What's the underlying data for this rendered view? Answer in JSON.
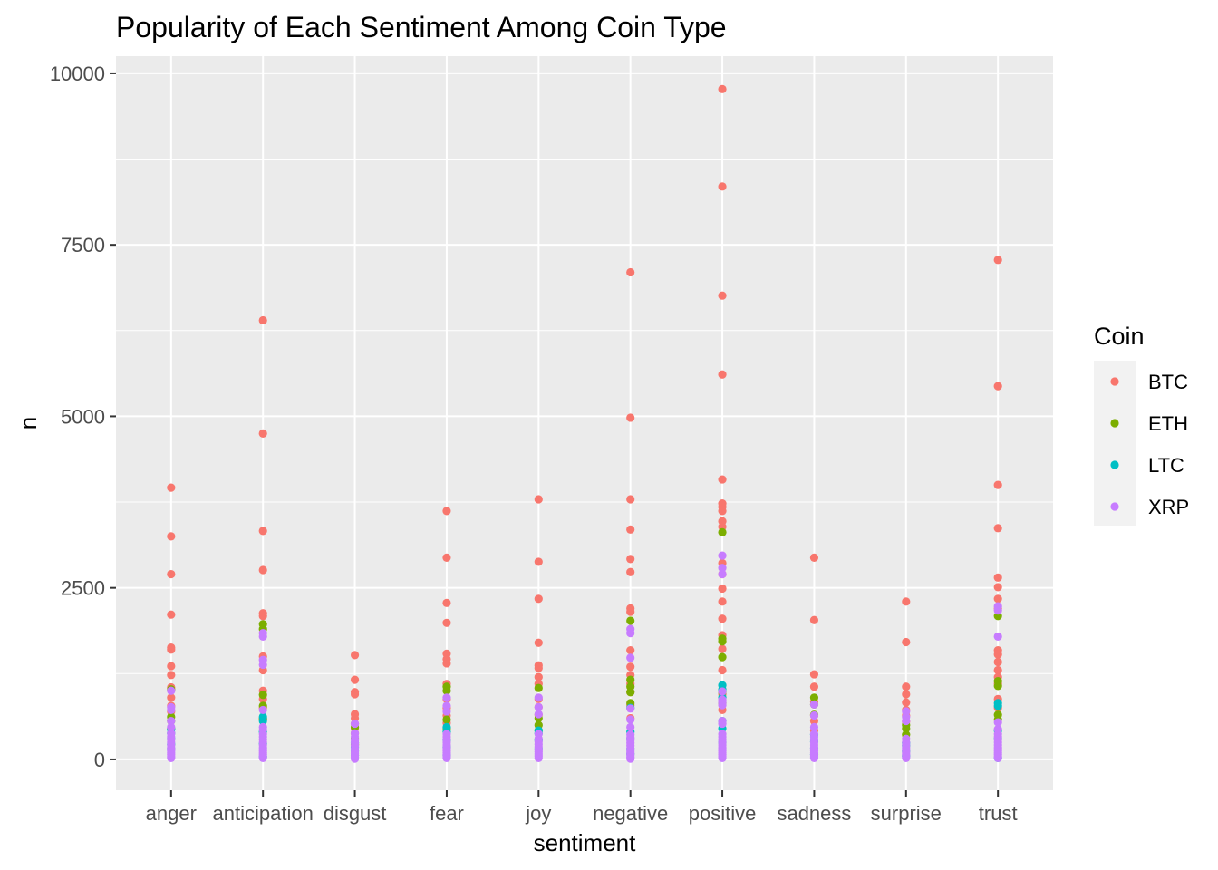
{
  "chart_data": {
    "type": "scatter",
    "title": "Popularity of Each Sentiment Among Coin Type",
    "xlabel": "sentiment",
    "ylabel": "n",
    "categories": [
      "anger",
      "anticipation",
      "disgust",
      "fear",
      "joy",
      "negative",
      "positive",
      "sadness",
      "surprise",
      "trust"
    ],
    "ylim": [
      -450,
      10250
    ],
    "yticks": [
      0,
      2500,
      5000,
      7500,
      10000
    ],
    "grid": true,
    "legend": {
      "title": "Coin",
      "placement": "right"
    },
    "series": [
      {
        "name": "BTC",
        "color": "#F8766D",
        "points": {
          "anger": [
            3960,
            3250,
            2700,
            2110,
            1630,
            1600,
            1360,
            1230,
            1050,
            900,
            780,
            700
          ],
          "anticipation": [
            6400,
            4750,
            3330,
            2760,
            2130,
            2090,
            1500,
            1300,
            1000,
            880,
            750,
            600
          ],
          "disgust": [
            1520,
            1160,
            980,
            950,
            660,
            600,
            520,
            450,
            380,
            300,
            210
          ],
          "fear": [
            3620,
            2940,
            2280,
            1990,
            1540,
            1460,
            1400,
            1100,
            880,
            750,
            640,
            530
          ],
          "joy": [
            3790,
            2880,
            2340,
            1700,
            1370,
            1330,
            1200,
            1100,
            880,
            760,
            650
          ],
          "negative": [
            7100,
            4980,
            3790,
            3350,
            2920,
            2730,
            2200,
            2150,
            1590,
            1350,
            1230,
            1100,
            980,
            790,
            600
          ],
          "positive": [
            9770,
            8350,
            6760,
            5610,
            4080,
            3730,
            3680,
            3620,
            3470,
            3390,
            2860,
            2700,
            2490,
            2300,
            2050,
            1810,
            1610,
            1300,
            950,
            720
          ],
          "sadness": [
            2940,
            2030,
            1240,
            1060,
            840,
            640,
            560,
            420
          ],
          "surprise": [
            2300,
            1710,
            1060,
            950,
            830,
            720,
            640,
            550
          ],
          "trust": [
            7280,
            5440,
            4000,
            3370,
            2650,
            2510,
            2340,
            2200,
            1590,
            1530,
            1420,
            1300,
            1200,
            1100,
            880,
            750
          ]
        }
      },
      {
        "name": "ETH",
        "color": "#7CAE00",
        "points": {
          "anger": [
            1020,
            620,
            560,
            450
          ],
          "anticipation": [
            1970,
            1900,
            940,
            780,
            590
          ],
          "disgust": [
            470,
            300,
            220
          ],
          "fear": [
            1060,
            1000,
            580,
            450
          ],
          "joy": [
            1040,
            600,
            500,
            420
          ],
          "negative": [
            2020,
            1160,
            1060,
            980,
            820
          ],
          "positive": [
            3310,
            1760,
            1720,
            1490,
            980,
            820
          ],
          "sadness": [
            900,
            800,
            650
          ],
          "surprise": [
            500,
            450,
            360
          ],
          "trust": [
            2090,
            1140,
            1070,
            650,
            580
          ]
        }
      },
      {
        "name": "LTC",
        "color": "#00BFC4",
        "points": {
          "anger": [
            440,
            380,
            300,
            220,
            150
          ],
          "anticipation": [
            620,
            560,
            400,
            230,
            40
          ],
          "disgust": [
            240,
            180,
            120,
            60
          ],
          "fear": [
            470,
            400,
            280,
            180,
            60
          ],
          "joy": [
            420,
            380,
            280,
            150
          ],
          "negative": [
            750,
            400,
            300,
            150,
            80
          ],
          "positive": [
            1080,
            1020,
            900,
            560,
            450,
            250
          ],
          "sadness": [
            360,
            260,
            160,
            70
          ],
          "surprise": [
            240,
            200,
            120,
            50
          ],
          "trust": [
            820,
            780,
            420,
            300,
            20
          ]
        }
      },
      {
        "name": "XRP",
        "color": "#C77CFF",
        "points": {
          "anger": [
            1000,
            760,
            720,
            560,
            470,
            380,
            330,
            290,
            250,
            210,
            170,
            130,
            100,
            70,
            40,
            20
          ],
          "anticipation": [
            1840,
            1790,
            1450,
            1380,
            720,
            470,
            430,
            370,
            330,
            290,
            250,
            210,
            170,
            130,
            100,
            70,
            40,
            20
          ],
          "disgust": [
            520,
            380,
            330,
            280,
            240,
            200,
            160,
            120,
            90,
            60,
            30,
            10
          ],
          "fear": [
            900,
            780,
            700,
            370,
            330,
            290,
            250,
            210,
            170,
            130,
            100,
            70,
            40,
            20
          ],
          "joy": [
            900,
            760,
            660,
            370,
            300,
            260,
            220,
            180,
            140,
            110,
            80,
            50,
            20
          ],
          "negative": [
            1900,
            1840,
            1480,
            740,
            580,
            470,
            360,
            320,
            280,
            240,
            200,
            160,
            120,
            90,
            60,
            30,
            10
          ],
          "positive": [
            2970,
            2790,
            2700,
            990,
            870,
            830,
            790,
            560,
            520,
            370,
            330,
            290,
            250,
            210,
            170,
            130,
            100,
            70,
            40,
            20
          ],
          "sadness": [
            800,
            640,
            470,
            370,
            330,
            290,
            250,
            210,
            170,
            130,
            100,
            70,
            40,
            20
          ],
          "surprise": [
            700,
            620,
            560,
            300,
            250,
            210,
            170,
            130,
            100,
            70,
            40,
            20
          ],
          "trust": [
            2230,
            2170,
            1790,
            540,
            440,
            370,
            330,
            290,
            250,
            210,
            170,
            130,
            100,
            70,
            40,
            20
          ]
        }
      }
    ]
  }
}
